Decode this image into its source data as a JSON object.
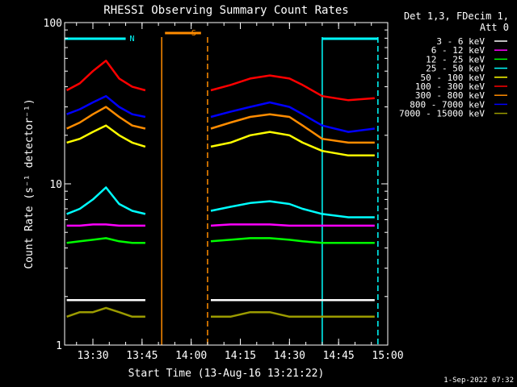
{
  "chart_data": {
    "type": "line",
    "title": "RHESSI Observing Summary Count Rates",
    "xlabel": "Start Time (13-Aug-16 13:21:22)",
    "ylabel": "Count Rate (s⁻¹ detector⁻¹)",
    "yscale": "log",
    "ylim": [
      1,
      100
    ],
    "y_ticks": [
      {
        "value": 1,
        "label": "1"
      },
      {
        "value": 10,
        "label": "10"
      },
      {
        "value": 100,
        "label": "100"
      }
    ],
    "xlim": [
      "13:21:22",
      "15:00"
    ],
    "x_ticks": [
      "13:30",
      "13:45",
      "14:00",
      "14:15",
      "14:30",
      "14:45",
      "15:00"
    ],
    "detector_info": [
      "Det 1,3, FDecim 1,",
      "Att 0"
    ],
    "timestamp": "1-Sep-2022 07:32",
    "flags": [
      {
        "label": "N",
        "color": "#00ffff",
        "start": "13:21:22",
        "end": "13:40"
      },
      {
        "label": "S",
        "color": "#ff8c00",
        "start": "13:52",
        "end": "14:03"
      },
      {
        "label": "",
        "color": "#00ffff",
        "start": "14:40",
        "end": "14:57"
      }
    ],
    "data_gaps": [
      {
        "start": "13:51",
        "end": "14:05",
        "color": "#ff8c00"
      },
      {
        "start": "14:40",
        "end": "14:57",
        "color": "#00ffff"
      }
    ],
    "series": [
      {
        "name": "3 - 6 keV",
        "color": "#ffffff",
        "values": [
          1.9,
          1.9,
          1.9,
          1.9,
          1.9,
          1.9,
          1.9,
          null,
          null,
          1.9,
          1.9,
          1.9,
          1.9,
          1.9,
          1.9,
          1.9,
          1.9,
          1.9
        ]
      },
      {
        "name": "6 - 12 keV",
        "color": "#ff00ff",
        "values": [
          5.5,
          5.5,
          5.6,
          5.6,
          5.5,
          5.5,
          5.5,
          null,
          null,
          5.5,
          5.6,
          5.6,
          5.6,
          5.5,
          5.5,
          5.5,
          5.5,
          5.5
        ]
      },
      {
        "name": "12 - 25 keV",
        "color": "#00ff00",
        "values": [
          4.3,
          4.4,
          4.5,
          4.6,
          4.4,
          4.3,
          4.3,
          null,
          null,
          4.4,
          4.5,
          4.6,
          4.6,
          4.5,
          4.4,
          4.3,
          4.3,
          4.3
        ]
      },
      {
        "name": "25 - 50 keV",
        "color": "#00ffff",
        "values": [
          6.5,
          7.0,
          8.0,
          9.5,
          7.5,
          6.8,
          6.5,
          null,
          null,
          6.8,
          7.2,
          7.6,
          7.8,
          7.5,
          7.0,
          6.5,
          6.2,
          6.2
        ]
      },
      {
        "name": "50 - 100 keV",
        "color": "#ffff00",
        "values": [
          18,
          19,
          21,
          23,
          20,
          18,
          17,
          null,
          null,
          17,
          18,
          20,
          21,
          20,
          18,
          16,
          15,
          15
        ]
      },
      {
        "name": "100 - 300 keV",
        "color": "#ff0000",
        "values": [
          38,
          42,
          50,
          58,
          45,
          40,
          38,
          null,
          null,
          38,
          41,
          45,
          47,
          45,
          41,
          35,
          33,
          34
        ]
      },
      {
        "name": "300 - 800 keV",
        "color": "#ff8c00",
        "values": [
          22,
          24,
          27,
          30,
          26,
          23,
          22,
          null,
          null,
          22,
          24,
          26,
          27,
          26,
          23,
          19,
          18,
          18
        ]
      },
      {
        "name": "800 - 7000 keV",
        "color": "#0000ff",
        "values": [
          27,
          29,
          32,
          35,
          30,
          27,
          26,
          null,
          null,
          26,
          28,
          30,
          32,
          30,
          27,
          23,
          21,
          22
        ]
      },
      {
        "name": "7000 - 15000 keV",
        "color": "#9b9b00",
        "values": [
          1.5,
          1.6,
          1.6,
          1.7,
          1.6,
          1.5,
          1.5,
          null,
          null,
          1.5,
          1.5,
          1.6,
          1.6,
          1.5,
          1.5,
          1.5,
          1.5,
          1.5
        ]
      }
    ],
    "x": [
      "13:22",
      "13:26",
      "13:30",
      "13:34",
      "13:38",
      "13:42",
      "13:46",
      "13:50",
      "14:05",
      "14:06",
      "14:12",
      "14:18",
      "14:24",
      "14:30",
      "14:34",
      "14:40",
      "14:48",
      "14:56"
    ],
    "legend_placement": "right",
    "grid": false
  }
}
